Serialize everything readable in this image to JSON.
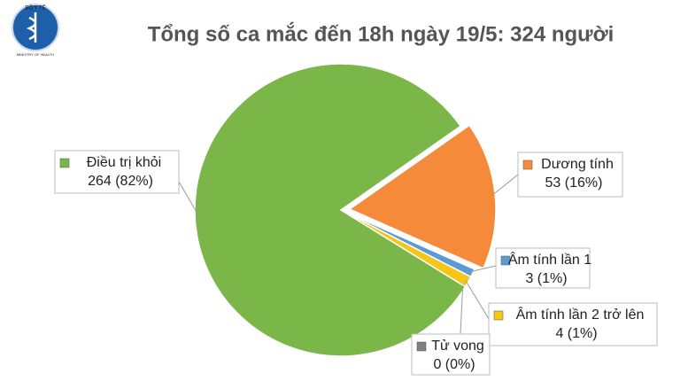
{
  "logo": {
    "top": "BỘ Y TẾ",
    "bottom": "MINISTRY OF HEALTH"
  },
  "chart_data": {
    "type": "pie",
    "title": "Tổng số ca mắc đến 18h ngày 19/5: 324 người",
    "categories": [
      "Dương tính",
      "Âm tính lần 1",
      "Âm tính lần 2 trở lên",
      "Tử vong",
      "Điều trị khỏi"
    ],
    "values": [
      53,
      3,
      4,
      0,
      264
    ],
    "value_labels": [
      "53 (16%)",
      "3 (1%)",
      "4 (1%)",
      "0 (0%)",
      "264 (82%)"
    ],
    "colors": [
      "#f58a3a",
      "#5b9bd5",
      "#f5c518",
      "#808080",
      "#7ab648"
    ]
  }
}
